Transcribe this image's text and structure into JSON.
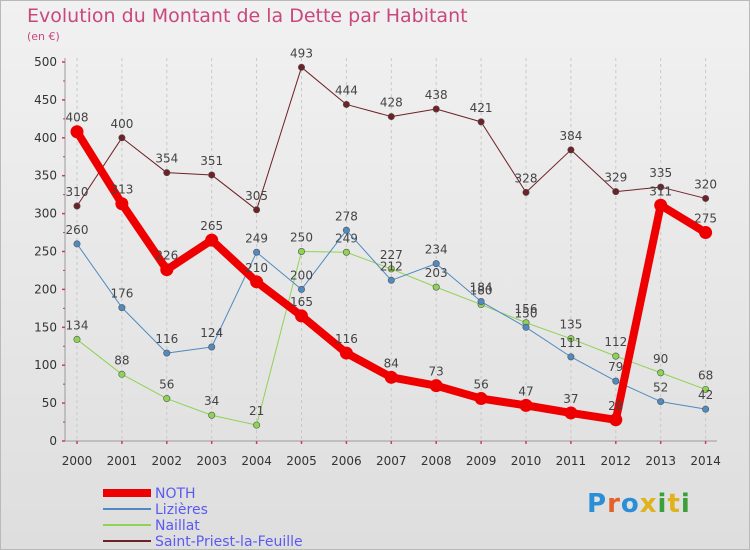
{
  "title": "Evolution du Montant de la Dette par Habitant",
  "subtitle": "(en €)",
  "logo": {
    "letters": [
      "P",
      "r",
      "o",
      "x",
      "i",
      "t",
      "i"
    ],
    "colors": [
      "#2b8fd8",
      "#e4612b",
      "#2b8fd8",
      "#e0b21c",
      "#3aa03a",
      "#e0b21c",
      "#3aa03a"
    ]
  },
  "chart_data": {
    "type": "line",
    "title": "Evolution du Montant de la Dette par Habitant",
    "ylabel": "(en €)",
    "xlabel": "",
    "x": [
      "2000",
      "2001",
      "2002",
      "2003",
      "2004",
      "2005",
      "2006",
      "2007",
      "2008",
      "2009",
      "2010",
      "2011",
      "2012",
      "2013",
      "2014"
    ],
    "yticks": [
      0,
      50,
      100,
      150,
      200,
      250,
      300,
      350,
      400,
      450,
      500
    ],
    "ylim": [
      0,
      500
    ],
    "grid": "vertical dashed",
    "legend_position": "bottom-left",
    "series": [
      {
        "name": "NOTH",
        "color": "#ee0000",
        "values": [
          408,
          313,
          226,
          265,
          210,
          165,
          116,
          84,
          73,
          56,
          47,
          37,
          28,
          311,
          275
        ]
      },
      {
        "name": "Lizières",
        "color": "#4f8ac1",
        "values": [
          260,
          176,
          116,
          124,
          249,
          200,
          278,
          212,
          234,
          184,
          150,
          111,
          79,
          52,
          42
        ]
      },
      {
        "name": "Naillat",
        "color": "#8fd353",
        "values": [
          134,
          88,
          56,
          34,
          21,
          250,
          249,
          227,
          203,
          180,
          156,
          135,
          112,
          90,
          68
        ]
      },
      {
        "name": "Saint-Priest-la-Feuille",
        "color": "#6e2127",
        "values": [
          310,
          400,
          354,
          351,
          305,
          493,
          444,
          428,
          438,
          421,
          328,
          384,
          329,
          335,
          320
        ]
      }
    ]
  }
}
